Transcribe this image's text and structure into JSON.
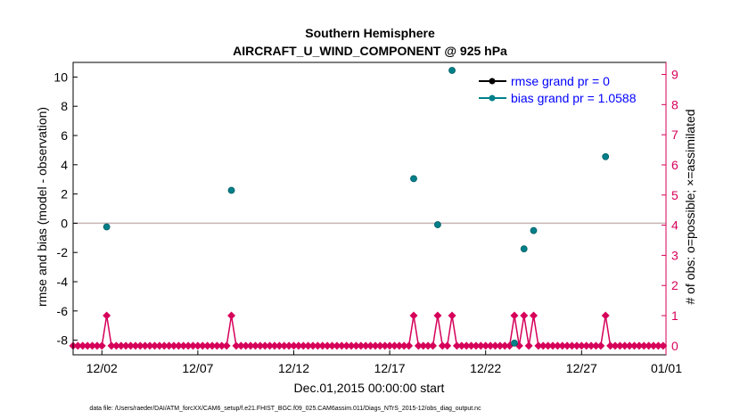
{
  "title": "Southern Hemisphere",
  "subtitle": "AIRCRAFT_U_WIND_COMPONENT @ 925 hPa",
  "colors": {
    "bias": "#00808a",
    "rmse": "#000000",
    "obs": "#d6005a",
    "zero_line": "#c8b4b4"
  },
  "chart_data": {
    "type": "scatter",
    "title": "Southern Hemisphere",
    "subtitle": "AIRCRAFT_U_WIND_COMPONENT @ 925 hPa",
    "xlabel": "Dec.01,2015 00:00:00 start",
    "ylabel": "rmse and bias (model - observation)",
    "y2label": "# of obs: o=possible; ×=assimilated",
    "xlim": [
      0.5,
      31.4
    ],
    "ylim": [
      -9,
      11
    ],
    "y2lim": [
      -0.3,
      9.4
    ],
    "xticks": [
      {
        "value": 2,
        "label": "12/02"
      },
      {
        "value": 7,
        "label": "12/07"
      },
      {
        "value": 12,
        "label": "12/12"
      },
      {
        "value": 17,
        "label": "12/17"
      },
      {
        "value": 22,
        "label": "12/22"
      },
      {
        "value": 27,
        "label": "12/27"
      },
      {
        "value": 32,
        "label": "01/01"
      }
    ],
    "yticks": [
      -8,
      -6,
      -4,
      -2,
      0,
      2,
      4,
      6,
      8,
      10
    ],
    "y2ticks": [
      0,
      1,
      2,
      3,
      4,
      5,
      6,
      7,
      8,
      9
    ],
    "legend": {
      "position": "top-right",
      "entries": [
        {
          "label": "rmse grand pr = 0",
          "series": "rmse"
        },
        {
          "label": "bias grand pr = 1.0588",
          "series": "bias"
        }
      ]
    },
    "series": [
      {
        "name": "bias",
        "x": [
          2.25,
          8.75,
          18.25,
          19.5,
          20.25,
          23.5,
          24.0,
          24.5,
          28.25
        ],
        "y": [
          -0.25,
          2.25,
          3.05,
          -0.1,
          10.45,
          -8.2,
          -1.75,
          -0.5,
          4.55
        ]
      },
      {
        "name": "obs_count",
        "axis": "right",
        "x_start": 0.5,
        "x_step": 0.25,
        "nonzero": {
          "2.25": 1,
          "8.75": 1,
          "18.25": 1,
          "19.5": 1,
          "20.25": 1,
          "23.5": 1,
          "24.0": 1,
          "24.5": 1,
          "28.25": 1
        },
        "count": 124
      }
    ]
  },
  "footer": "data file: /Users/raeder/DAI/ATM_forcXX/CAM6_setup/f.e21.FHIST_BGC.f09_025.CAM6assim.011/Diags_NTrS_2015-12/obs_diag_output.nc"
}
